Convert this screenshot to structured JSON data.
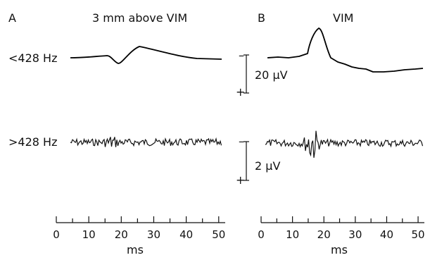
{
  "panels": [
    {
      "letter": "A",
      "title": "3 mm  above VIM"
    },
    {
      "letter": "B",
      "title": "VIM"
    }
  ],
  "row_labels": {
    "low": "<428 Hz",
    "high": ">428 Hz"
  },
  "scale_bars": {
    "top": {
      "value": "20 μV",
      "minus": "–",
      "plus": "+"
    },
    "bottom": {
      "value": "2 μV",
      "minus": "–",
      "plus": "+"
    }
  },
  "x_axis": {
    "label": "ms",
    "ticks": [
      "0",
      "10",
      "20",
      "30",
      "40",
      "50"
    ],
    "range": [
      0,
      52
    ]
  },
  "colors": {
    "trace": "#000000",
    "background": "#ffffff"
  }
}
